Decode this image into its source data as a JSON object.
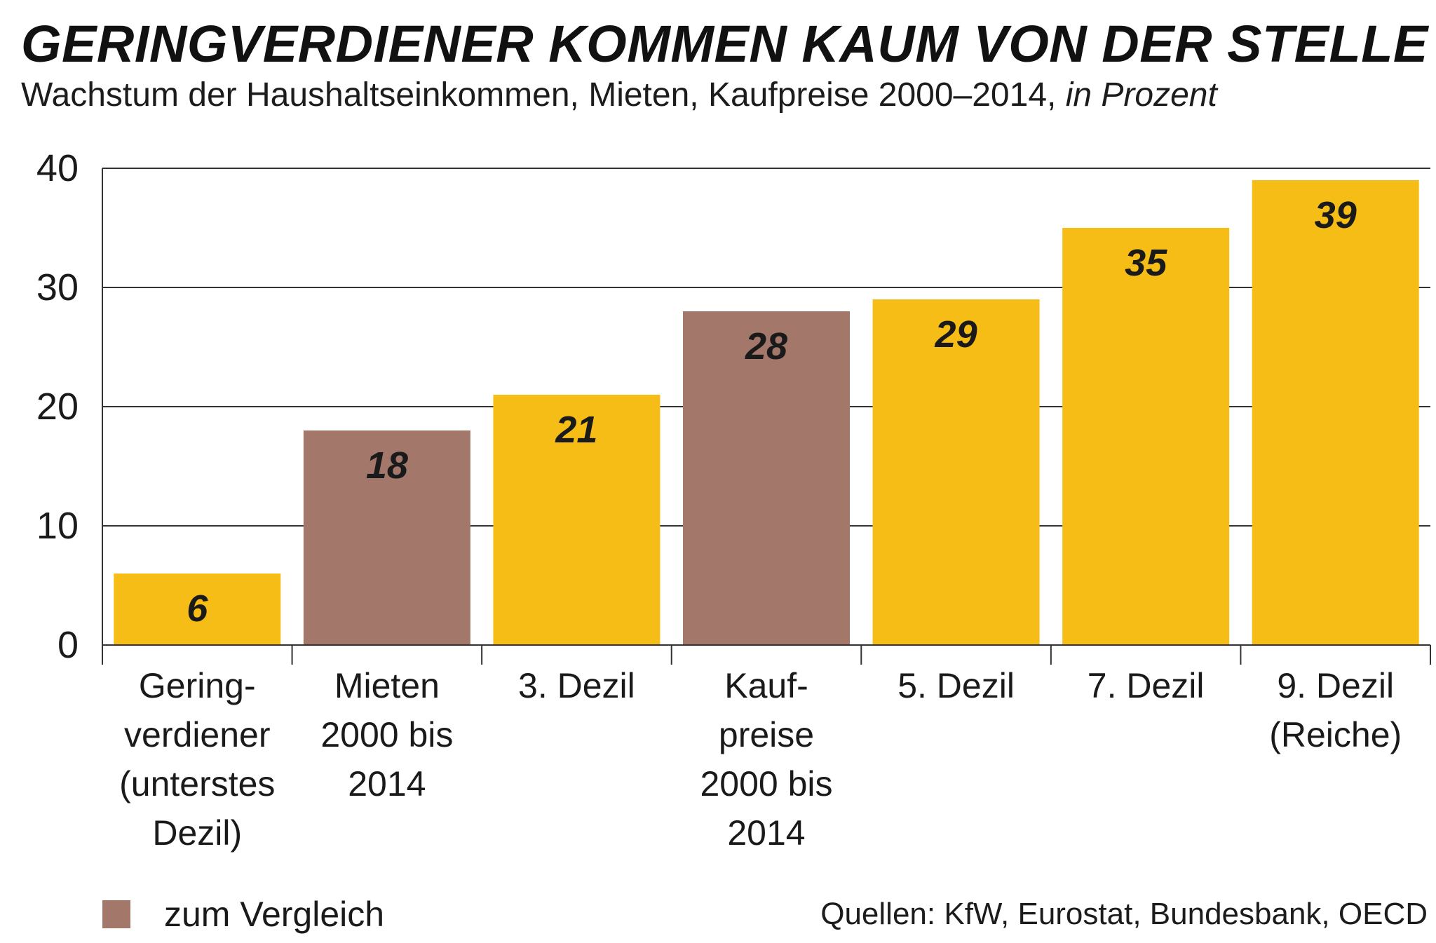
{
  "header": {
    "title": "GERINGVERDIENER KOMMEN KAUM VON DER STELLE ...",
    "subtitle": "Wachstum der Haushaltseinkommen, Mieten, Kaufpreise 2000–2014,",
    "subtitle_unit": "in Prozent"
  },
  "legend": {
    "label": "zum Vergleich",
    "color": "#a3776a"
  },
  "sources": "Quellen: KfW, Eurostat, Bundesbank, OECD",
  "colors": {
    "income": "#f7bd17",
    "comparison": "#a3776a",
    "grid": "#333333"
  },
  "chart_data": {
    "type": "bar",
    "categories": [
      [
        "Gering-",
        "verdiener",
        "(unterstes",
        "Dezil)"
      ],
      [
        "Mieten",
        "2000 bis",
        "2014"
      ],
      [
        "3. Dezil"
      ],
      [
        "Kauf-",
        "preise",
        "2000 bis",
        "2014"
      ],
      [
        "5. Dezil"
      ],
      [
        "7. Dezil"
      ],
      [
        "9. Dezil",
        "(Reiche)"
      ]
    ],
    "values": [
      6,
      18,
      21,
      28,
      29,
      35,
      39
    ],
    "value_labels": [
      "6",
      "18",
      "21",
      "28",
      "29",
      "35",
      "39"
    ],
    "comparison": [
      false,
      true,
      false,
      true,
      false,
      false,
      false
    ],
    "yticks": [
      0,
      10,
      20,
      30,
      40
    ],
    "ylim": [
      0,
      40
    ],
    "grid": true
  }
}
